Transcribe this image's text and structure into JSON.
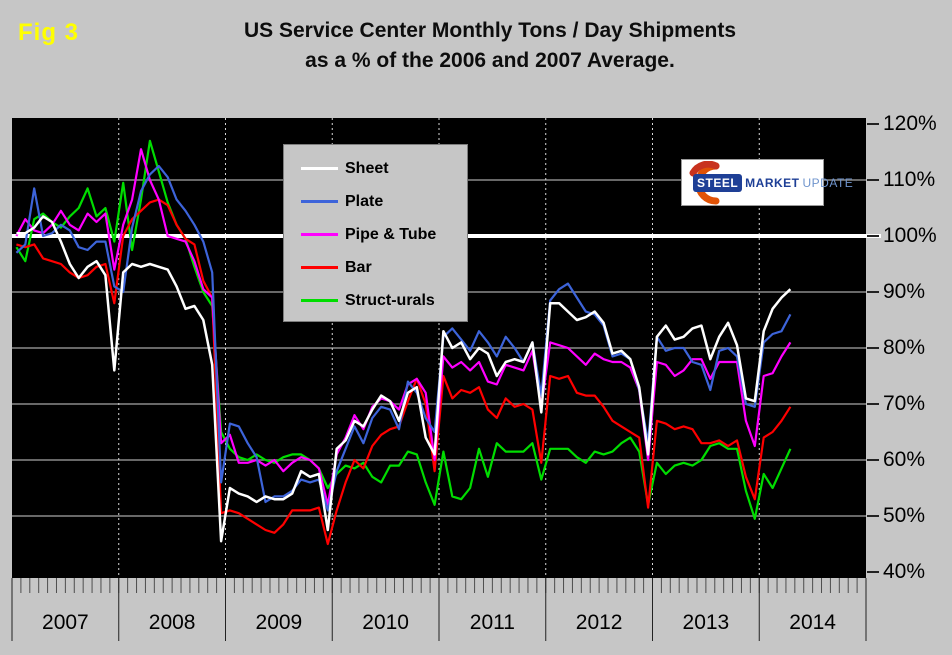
{
  "figure_label": "Fig 3",
  "title": {
    "line1": "US Service Center Monthly Tons / Day Shipments",
    "line2": "as a % of the 2006 and 2007 Average."
  },
  "logo": {
    "steel": "STEEL",
    "market": "MARKET",
    "update": "UPDATE",
    "swoosh_color": "#e05206"
  },
  "colors": {
    "page_background": "#c6c6c6",
    "plot_background": "#000000",
    "gridline": "#8a8a8a",
    "year_dotted_line": "#d9d9d9",
    "reference_line": "#ffffff",
    "axis_text": "#000000",
    "figure_label": "#ffff00"
  },
  "chart_data": {
    "type": "line",
    "title": "US Service Center Monthly Tons / Day Shipments as a % of the 2006 and 2007 Average.",
    "xlabel": "",
    "ylabel": "",
    "ylim": [
      40,
      120
    ],
    "grid": true,
    "legend_position": "inside-top-left",
    "x_start": "2007-01",
    "x_end": "2014-04",
    "points_per_year": 12,
    "x_tick_years": [
      "2007",
      "2008",
      "2009",
      "2010",
      "2011",
      "2012",
      "2013",
      "2014"
    ],
    "y_tick_values": [
      120,
      110,
      100,
      90,
      80,
      70,
      60,
      50,
      40
    ],
    "y_tick_labels": [
      "120%",
      "110%",
      "100%",
      "90%",
      "80%",
      "70%",
      "60%",
      "50%",
      "40%"
    ],
    "y_grid_values": [
      110,
      90,
      80,
      70,
      60,
      50
    ],
    "reference_line": {
      "value": 100,
      "color": "#ffffff"
    },
    "series": [
      {
        "name": "Sheet",
        "color": "#ffffff",
        "values": [
          100.5,
          100.5,
          101.5,
          103.5,
          102.5,
          99,
          95,
          92.5,
          94.5,
          95.5,
          93,
          76,
          93.5,
          95,
          94.5,
          95,
          94.5,
          94,
          91,
          87,
          87.5,
          85,
          77,
          45.5,
          55,
          54,
          53.5,
          52.5,
          53.5,
          53,
          53,
          54,
          58,
          57,
          57.5,
          47.5,
          62,
          63.5,
          67,
          66,
          69,
          71.5,
          70.5,
          67,
          72,
          73,
          64,
          61,
          83,
          80,
          81,
          78,
          80,
          79,
          75,
          77.5,
          78,
          77.5,
          81,
          68.5,
          88,
          88,
          86.5,
          85,
          85.5,
          86.5,
          84.5,
          79,
          79.5,
          78,
          73,
          61,
          82,
          84,
          81.5,
          82,
          83.5,
          84,
          78,
          82,
          84.5,
          80.5,
          71,
          70.5,
          83,
          87,
          89,
          90.5
        ]
      },
      {
        "name": "Plate",
        "color": "#3d64da",
        "values": [
          97,
          98.5,
          108.5,
          100,
          100.5,
          102,
          101,
          98,
          97.5,
          99,
          99,
          91,
          90,
          101.5,
          108,
          111,
          112.5,
          110.5,
          106.5,
          104.5,
          102,
          99,
          93.5,
          56,
          66.5,
          66,
          63,
          60.5,
          52.5,
          53.5,
          53.5,
          54.5,
          56.5,
          56,
          56.5,
          51,
          58,
          62,
          66,
          63,
          67.5,
          69.5,
          69,
          65.5,
          74,
          72,
          67.5,
          65,
          82,
          83.5,
          81.5,
          79.5,
          83,
          81,
          78.5,
          82,
          80,
          77.5,
          81,
          71.5,
          88.5,
          90.5,
          91.5,
          89,
          86.5,
          86,
          84,
          78.5,
          79,
          78,
          72.5,
          63,
          82,
          79.5,
          80,
          80,
          77.5,
          77,
          72.5,
          79.5,
          80,
          78.5,
          70,
          69.5,
          81,
          82.5,
          83,
          86
        ]
      },
      {
        "name": "Pipe & Tube",
        "color": "#ff00ff",
        "values": [
          100,
          103,
          101,
          100.5,
          102,
          104.5,
          102,
          101,
          104,
          102.5,
          104,
          94,
          102,
          106.5,
          115.5,
          110,
          106.5,
          100,
          99.5,
          99,
          95.5,
          90.5,
          89,
          63,
          64.5,
          59.5,
          59.5,
          60,
          59,
          60,
          58,
          59.5,
          60.5,
          60,
          58.5,
          52,
          61,
          64,
          68,
          65.5,
          69.5,
          71,
          70.5,
          69,
          73.5,
          74.5,
          72,
          60,
          78.5,
          76.5,
          77.5,
          76,
          77.5,
          74,
          73.5,
          77,
          76.5,
          76,
          79.5,
          69.5,
          81,
          80.5,
          80,
          78.5,
          77,
          79,
          78,
          77.5,
          77.5,
          76.5,
          72.5,
          60,
          77.5,
          77,
          75,
          76,
          78,
          78,
          74.5,
          77.5,
          77.5,
          77.5,
          67,
          62.5,
          75,
          75.5,
          78.5,
          81
        ]
      },
      {
        "name": "Bar",
        "color": "#ff0000",
        "values": [
          98.5,
          98,
          98.5,
          96,
          95.5,
          95,
          93.5,
          92.5,
          93,
          94.5,
          95,
          88,
          100,
          103,
          104.5,
          106,
          106.5,
          105.5,
          102,
          99.5,
          98.5,
          92,
          89,
          50.5,
          51,
          50.5,
          49.5,
          48.5,
          47.5,
          47,
          48.5,
          51,
          51,
          51,
          51.5,
          45,
          51,
          56,
          60,
          58.5,
          62.5,
          64.5,
          65.5,
          66,
          70.5,
          74.5,
          70,
          58,
          75,
          71,
          72.5,
          72,
          73,
          69,
          67.5,
          71,
          69.5,
          70,
          69,
          59.5,
          75,
          74.5,
          75,
          72,
          71.5,
          71.5,
          69.5,
          67,
          66,
          65,
          64,
          51.5,
          67,
          66.5,
          65.5,
          66,
          65.5,
          63,
          63,
          63.5,
          62.5,
          63.5,
          57,
          53,
          64,
          65,
          67,
          69.5
        ]
      },
      {
        "name": "Struct-urals",
        "color": "#00dd00",
        "values": [
          98,
          95.5,
          103,
          104,
          102.5,
          101.5,
          103.5,
          105,
          108.5,
          103.5,
          105,
          99,
          109.5,
          97.5,
          106.5,
          117,
          111.5,
          106,
          102,
          99.5,
          94.5,
          90,
          87.5,
          65,
          62,
          60.5,
          60,
          61,
          60,
          59.5,
          60.5,
          61,
          61,
          60,
          58.5,
          55,
          57.5,
          59,
          58.5,
          59.5,
          57,
          56,
          59,
          59,
          61.5,
          61,
          56,
          52,
          61.5,
          53.5,
          53,
          55,
          62,
          57,
          63,
          61.5,
          61.5,
          61.5,
          63,
          56.5,
          62,
          62,
          62,
          60.5,
          59.5,
          61.5,
          61,
          61.5,
          63,
          64,
          61.5,
          52,
          59.5,
          57.5,
          59,
          59.5,
          59,
          60,
          62.5,
          63,
          62,
          62,
          54.5,
          49.5,
          57.5,
          55,
          58.5,
          62
        ]
      }
    ]
  }
}
